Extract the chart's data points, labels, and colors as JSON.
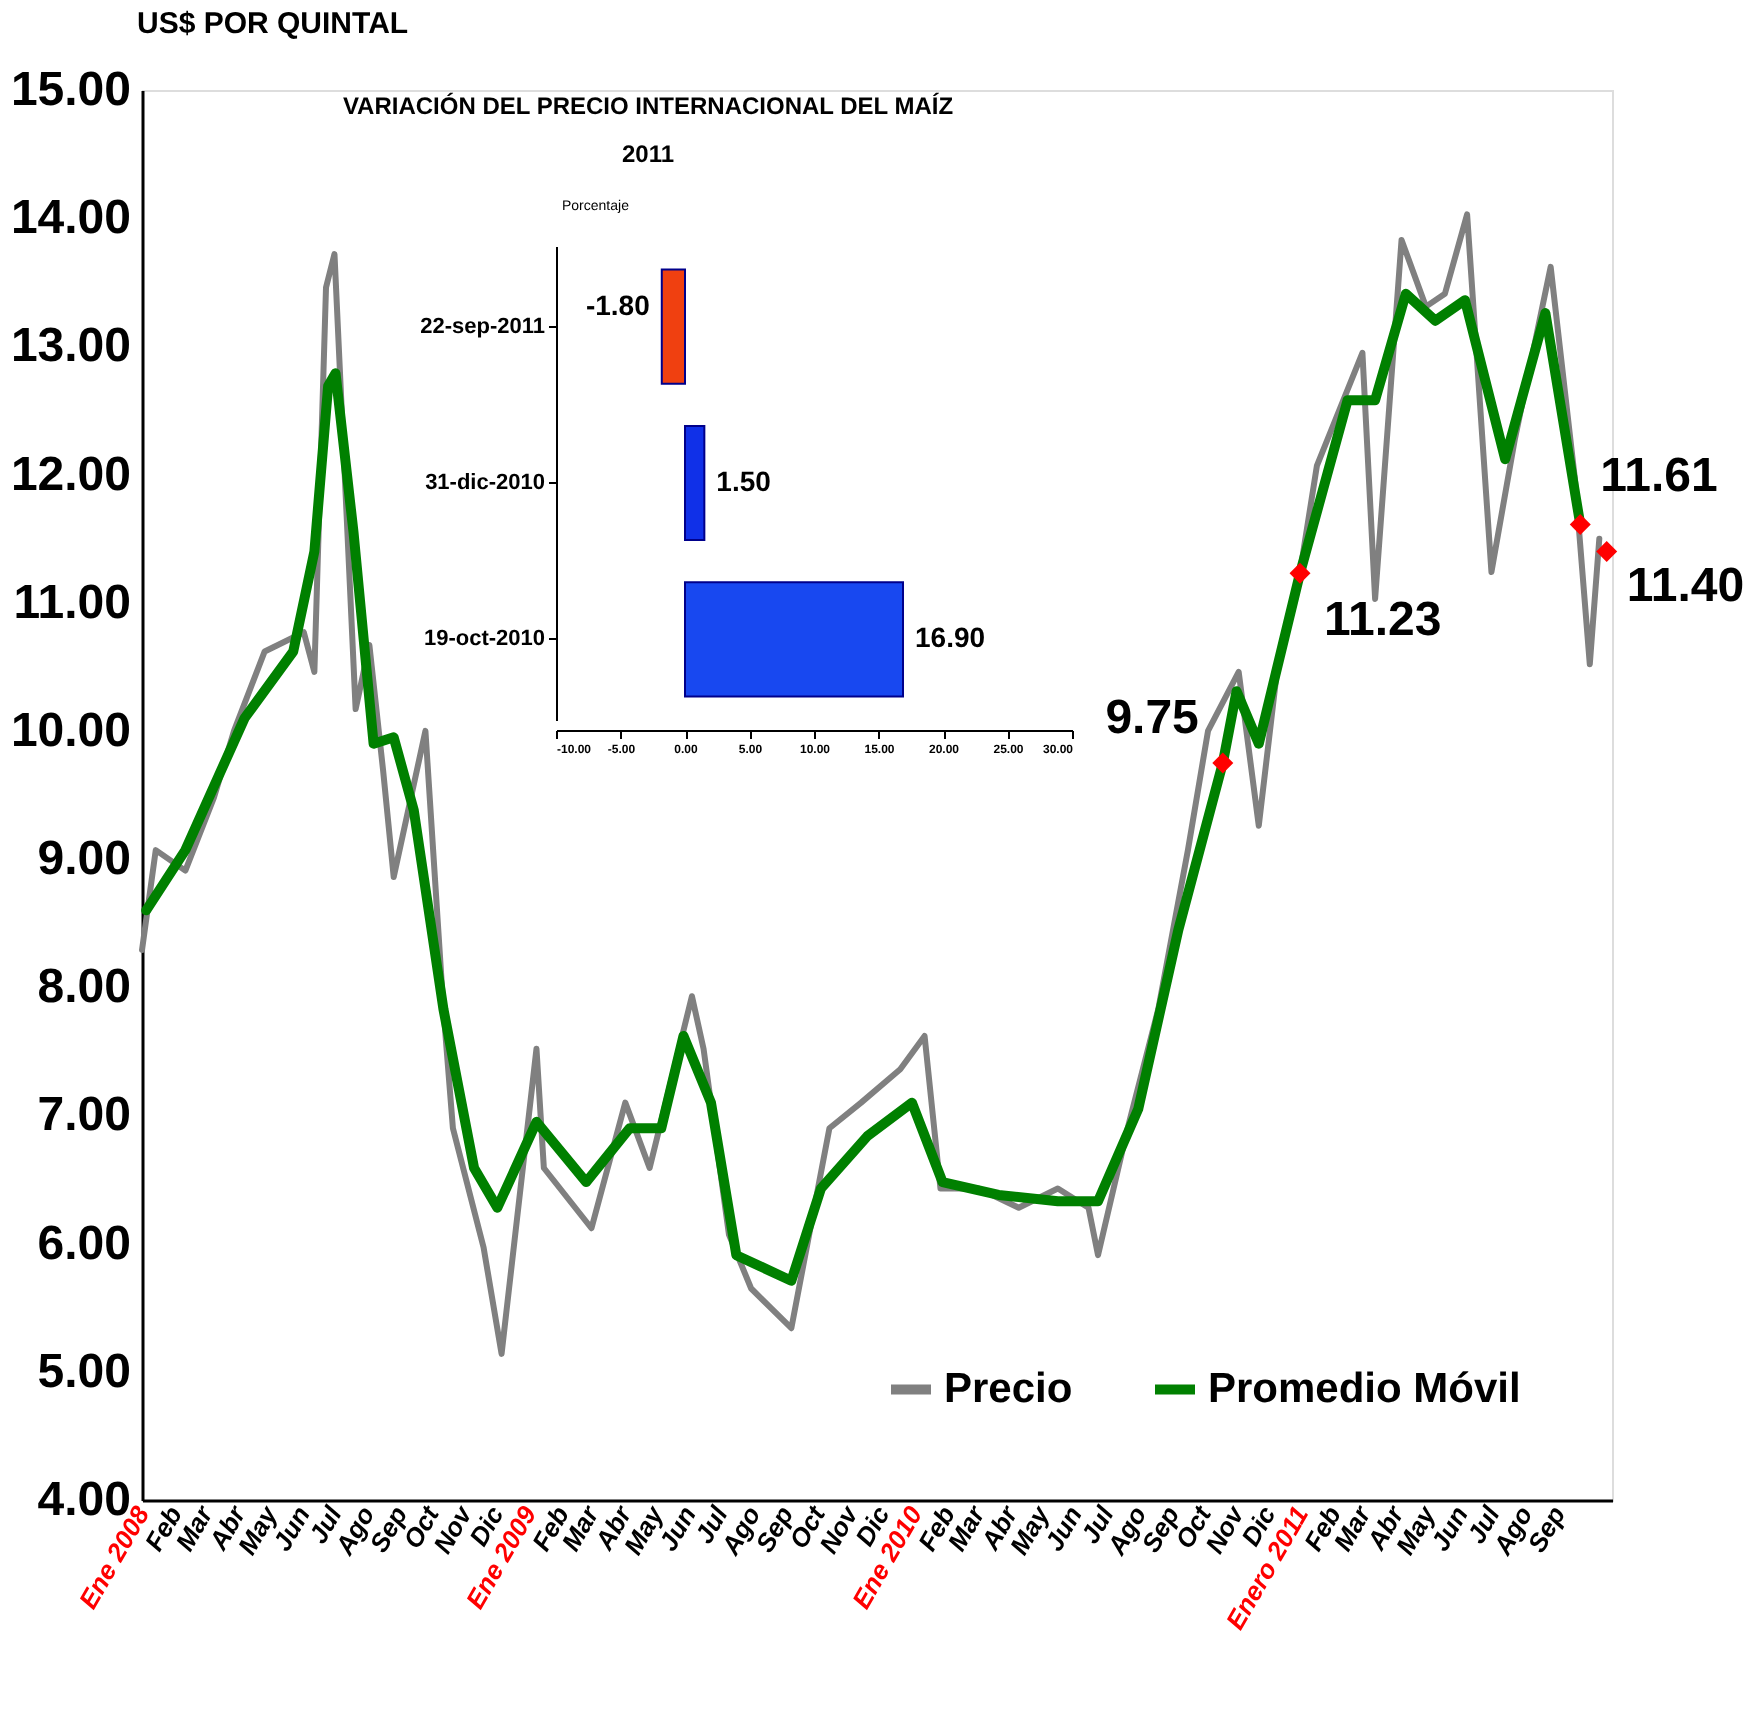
{
  "chart_data": [
    {
      "type": "line",
      "ylabel": "US$ POR QUINTAL",
      "xlim": [
        "2008-01-01",
        "2011-10-22"
      ],
      "xticks": [
        {
          "value": "2008-01",
          "label": "Ene 2008"
        },
        {
          "value": "2008-02",
          "label": "Feb"
        },
        {
          "value": "2008-03",
          "label": "Mar"
        },
        {
          "value": "2008-04",
          "label": "Abr"
        },
        {
          "value": "2008-05",
          "label": "May"
        },
        {
          "value": "2008-06",
          "label": "Jun"
        },
        {
          "value": "2008-07",
          "label": "Jul"
        },
        {
          "value": "2008-08",
          "label": "Ago"
        },
        {
          "value": "2008-09",
          "label": "Sep"
        },
        {
          "value": "2008-10",
          "label": "Oct"
        },
        {
          "value": "2008-11",
          "label": "Nov"
        },
        {
          "value": "2008-12",
          "label": "Dic"
        },
        {
          "value": "2009-01",
          "label": "Ene 2009"
        },
        {
          "value": "2009-02",
          "label": "Feb"
        },
        {
          "value": "2009-03",
          "label": "Mar"
        },
        {
          "value": "2009-04",
          "label": "Abr"
        },
        {
          "value": "2009-05",
          "label": "May"
        },
        {
          "value": "2009-06",
          "label": "Jun"
        },
        {
          "value": "2009-07",
          "label": "Jul"
        },
        {
          "value": "2009-08",
          "label": "Ago"
        },
        {
          "value": "2009-09",
          "label": "Sep"
        },
        {
          "value": "2009-10",
          "label": "Oct"
        },
        {
          "value": "2009-11",
          "label": "Nov"
        },
        {
          "value": "2009-12",
          "label": "Dic"
        },
        {
          "value": "2010-01",
          "label": "Ene 2010"
        },
        {
          "value": "2010-02",
          "label": "Feb"
        },
        {
          "value": "2010-03",
          "label": "Mar"
        },
        {
          "value": "2010-04",
          "label": "Abr"
        },
        {
          "value": "2010-05",
          "label": "May"
        },
        {
          "value": "2010-06",
          "label": "Jun"
        },
        {
          "value": "2010-07",
          "label": "Jul"
        },
        {
          "value": "2010-08",
          "label": "Ago"
        },
        {
          "value": "2010-09",
          "label": "Sep"
        },
        {
          "value": "2010-10",
          "label": "Oct"
        },
        {
          "value": "2010-11",
          "label": "Nov"
        },
        {
          "value": "2010-12",
          "label": "Dic"
        },
        {
          "value": "2011-01",
          "label": "Enero 2011"
        },
        {
          "value": "2011-02",
          "label": "Feb"
        },
        {
          "value": "2011-03",
          "label": "Mar"
        },
        {
          "value": "2011-04",
          "label": "Abr"
        },
        {
          "value": "2011-05",
          "label": "May"
        },
        {
          "value": "2011-06",
          "label": "Jun"
        },
        {
          "value": "2011-07",
          "label": "Jul"
        },
        {
          "value": "2011-08",
          "label": "Ago"
        },
        {
          "value": "2011-09",
          "label": "Sep"
        }
      ],
      "ylim": [
        4,
        15
      ],
      "yticks": [
        {
          "value": 4,
          "label": "4.00"
        },
        {
          "value": 5,
          "label": "5.00"
        },
        {
          "value": 6,
          "label": "6.00"
        },
        {
          "value": 7,
          "label": "7.00"
        },
        {
          "value": 8,
          "label": "8.00"
        },
        {
          "value": 9,
          "label": "9.00"
        },
        {
          "value": 10,
          "label": "10.00"
        },
        {
          "value": 11,
          "label": "11.00"
        },
        {
          "value": 12,
          "label": "12.00"
        },
        {
          "value": 13,
          "label": "13.00"
        },
        {
          "value": 14,
          "label": "14.00"
        },
        {
          "value": 15,
          "label": "15.00"
        }
      ],
      "grid": false,
      "legend": "bottom right",
      "series": [
        {
          "name": "Precio",
          "color": "#808080",
          "x": [
            "2008-01-01",
            "2008-01-14",
            "2008-02-11",
            "2008-03-09",
            "2008-03-28",
            "2008-04-26",
            "2008-06-02",
            "2008-06-12",
            "2008-06-23",
            "2008-07-01",
            "2008-07-21",
            "2008-08-03",
            "2008-08-16",
            "2008-08-26",
            "2008-09-25",
            "2008-10-12",
            "2008-10-21",
            "2008-11-19",
            "2008-12-06",
            "2009-01-08",
            "2009-01-15",
            "2009-03-01",
            "2009-04-02",
            "2009-04-25",
            "2009-06-04",
            "2009-06-15",
            "2009-07-09",
            "2009-07-30",
            "2009-09-06",
            "2009-10-12",
            "2009-11-11",
            "2009-12-18",
            "2010-01-10",
            "2010-01-25",
            "2010-03-02",
            "2010-04-09",
            "2010-05-16",
            "2010-06-14",
            "2010-06-23",
            "2010-07-21",
            "2010-08-19",
            "2010-09-16",
            "2010-10-05",
            "2010-11-03",
            "2010-11-22",
            "2010-12-10",
            "2010-12-28",
            "2011-01-16",
            "2011-02-28",
            "2011-03-12",
            "2011-04-06",
            "2011-04-29",
            "2011-05-17",
            "2011-06-07",
            "2011-06-30",
            "2011-07-22",
            "2011-08-25",
            "2011-09-17",
            "2011-10-01",
            "2011-10-10"
          ],
          "values": [
            8.29,
            9.07,
            8.91,
            9.48,
            10.0,
            10.62,
            10.77,
            10.46,
            13.46,
            13.72,
            10.17,
            10.67,
            9.69,
            8.86,
            10.0,
            7.83,
            6.9,
            5.97,
            5.14,
            7.52,
            6.59,
            6.12,
            7.1,
            6.59,
            7.93,
            7.52,
            6.07,
            5.65,
            5.34,
            6.9,
            7.1,
            7.36,
            7.62,
            6.43,
            6.43,
            6.28,
            6.43,
            6.28,
            5.91,
            6.9,
            7.83,
            9.07,
            10.0,
            10.46,
            9.26,
            10.52,
            11.08,
            12.07,
            12.95,
            11.03,
            13.83,
            13.31,
            13.41,
            14.03,
            11.24,
            12.27,
            13.62,
            11.96,
            10.52,
            11.5
          ]
        },
        {
          "name": "Promedio Móvil",
          "color": "#008000",
          "x": [
            "2008-01-05",
            "2008-02-11",
            "2008-04-07",
            "2008-05-23",
            "2008-06-12",
            "2008-06-25",
            "2008-07-02",
            "2008-07-19",
            "2008-08-07",
            "2008-08-26",
            "2008-09-14",
            "2008-10-12",
            "2008-11-10",
            "2008-12-02",
            "2009-01-08",
            "2009-02-24",
            "2009-04-06",
            "2009-05-06",
            "2009-05-27",
            "2009-06-22",
            "2009-07-16",
            "2009-09-06",
            "2009-10-04",
            "2009-11-17",
            "2009-12-29",
            "2010-01-27",
            "2010-03-21",
            "2010-05-16",
            "2010-06-23",
            "2010-07-31",
            "2010-09-07",
            "2010-10-19",
            "2010-11-01",
            "2010-11-22",
            "2010-12-31",
            "2011-02-14",
            "2011-03-12",
            "2011-04-10",
            "2011-05-08",
            "2011-06-05",
            "2011-07-13",
            "2011-08-20",
            "2011-09-22"
          ],
          "values": [
            8.6,
            9.07,
            10.1,
            10.62,
            11.4,
            12.69,
            12.79,
            11.55,
            9.9,
            9.95,
            9.38,
            7.83,
            6.59,
            6.28,
            6.95,
            6.48,
            6.9,
            6.9,
            7.62,
            7.1,
            5.91,
            5.71,
            6.43,
            6.84,
            7.1,
            6.48,
            6.38,
            6.33,
            6.33,
            7.05,
            8.45,
            9.75,
            10.31,
            9.9,
            11.23,
            12.58,
            12.58,
            13.41,
            13.2,
            13.36,
            12.12,
            13.26,
            11.61
          ]
        },
        {
          "type": "scatter",
          "marker": "diamond",
          "color": "#ff0000",
          "x": [
            "2010-10-19",
            "2010-12-31",
            "2011-09-22",
            "2011-10-17"
          ],
          "values": [
            9.75,
            11.23,
            11.61,
            11.4
          ]
        }
      ],
      "annotations": [
        {
          "text": "9.75",
          "x": "2010-10-19",
          "y": 9.75
        },
        {
          "text": "11.23",
          "x": "2010-12-31",
          "y": 11.23
        },
        {
          "text": "11.61",
          "x": "2011-09-22",
          "y": 11.61
        },
        {
          "text": "11.40",
          "x": "2011-10-17",
          "y": 11.4
        }
      ]
    },
    {
      "type": "bar",
      "orientation": "horizontal",
      "title": "VARIACIÓN DEL PRECIO INTERNACIONAL DEL MAÍZ",
      "subtitle": "2011",
      "xlabel": "Porcentaje",
      "categories": [
        "22-sep-2011",
        "31-dic-2010",
        "19-oct-2010"
      ],
      "values": [
        -1.8,
        1.5,
        16.9
      ],
      "colors": [
        "#f04010",
        "#1030e8",
        "#1848f0"
      ],
      "value_labels": [
        "-1.80",
        "1.50",
        "16.90"
      ],
      "xlim": [
        -10,
        30
      ],
      "xticks": [
        {
          "value": -10,
          "label": "-10.00"
        },
        {
          "value": -5,
          "label": "-5.00"
        },
        {
          "value": 0,
          "label": "0.00"
        },
        {
          "value": 5,
          "label": "5.00"
        },
        {
          "value": 10,
          "label": "10.00"
        },
        {
          "value": 15,
          "label": "15.00"
        },
        {
          "value": 20,
          "label": "20.00"
        },
        {
          "value": 25,
          "label": "25.00"
        },
        {
          "value": 30,
          "label": "30.00"
        }
      ]
    }
  ]
}
